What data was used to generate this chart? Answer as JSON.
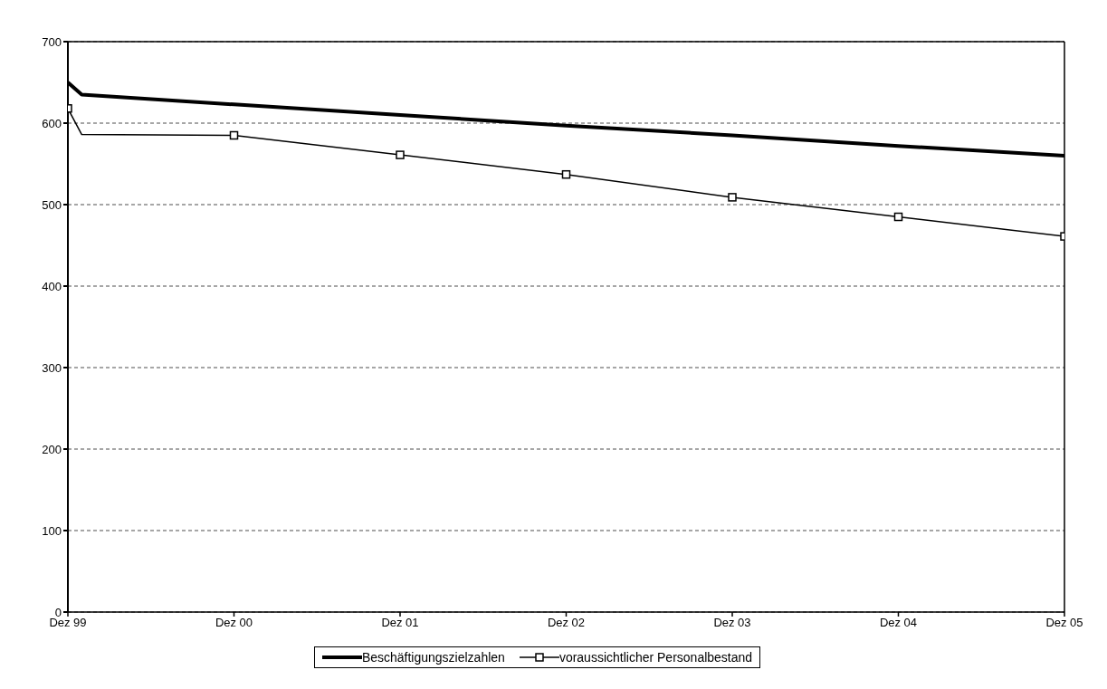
{
  "chart_data": {
    "type": "line",
    "x": [
      "1999-12",
      "2000-01",
      "2000-12",
      "2001-12",
      "2002-12",
      "2003-12",
      "2004-12",
      "2005-12"
    ],
    "xlim": [
      "1999-12",
      "2005-12"
    ],
    "xticks": [
      {
        "value": "1999-12",
        "label": "Dez 99"
      },
      {
        "value": "2000-12",
        "label": "Dez 00"
      },
      {
        "value": "2001-12",
        "label": "Dez 01"
      },
      {
        "value": "2002-12",
        "label": "Dez 02"
      },
      {
        "value": "2003-12",
        "label": "Dez 03"
      },
      {
        "value": "2004-12",
        "label": "Dez 04"
      },
      {
        "value": "2005-12",
        "label": "Dez 05"
      }
    ],
    "ylim": [
      0,
      700
    ],
    "yticks": [
      0,
      100,
      200,
      300,
      400,
      500,
      600,
      700
    ],
    "grid": "y",
    "legend": "bottom",
    "series": [
      {
        "name": "Beschäftigungszielzahlen",
        "color": "#000000",
        "marker": "none",
        "values": [
          650,
          635,
          623,
          610,
          597,
          585,
          572,
          560
        ]
      },
      {
        "name": "voraussichtlicher Personalbestand",
        "color": "#000000",
        "marker": "square",
        "values": [
          618,
          586,
          585,
          561,
          537,
          509,
          485,
          461
        ]
      }
    ]
  }
}
